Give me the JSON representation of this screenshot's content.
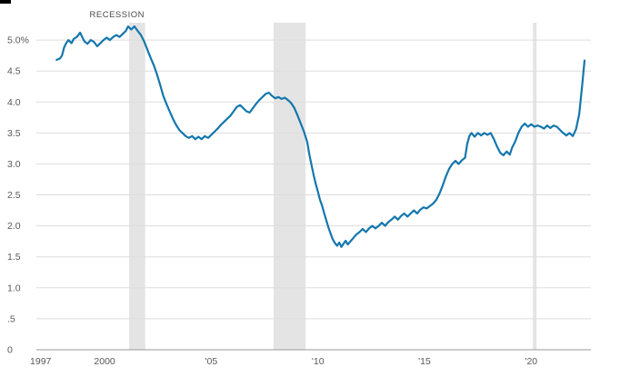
{
  "chart_data": {
    "type": "line",
    "title": "",
    "xlabel": "",
    "ylabel": "",
    "grid": true,
    "xlim": [
      1996.8,
      2022.8
    ],
    "ylim": [
      0,
      5.28
    ],
    "recession_label": "RECESSION",
    "colors": {
      "line": "#1477ad",
      "grid": "#dddddd",
      "axis": "#9a9a9a",
      "band": "#e4e4e4",
      "tick_text": "#595959",
      "annotation_text": "#4a4a4a",
      "corner_mark": "#000000"
    },
    "yticks": [
      {
        "value": 5.0,
        "label": "5.0%"
      },
      {
        "value": 4.5,
        "label": "4.5"
      },
      {
        "value": 4.0,
        "label": "4.0"
      },
      {
        "value": 3.5,
        "label": "3.5"
      },
      {
        "value": 3.0,
        "label": "3.0"
      },
      {
        "value": 2.5,
        "label": "2.5"
      },
      {
        "value": 2.0,
        "label": "2.0"
      },
      {
        "value": 1.5,
        "label": "1.5"
      },
      {
        "value": 1.0,
        "label": "1.0"
      },
      {
        "value": 0.5,
        "label": ".5"
      },
      {
        "value": 0,
        "label": "0"
      }
    ],
    "xticks": [
      {
        "value": 1997,
        "label": "1997"
      },
      {
        "value": 2000,
        "label": "2000"
      },
      {
        "value": 2005,
        "label": "'05"
      },
      {
        "value": 2010,
        "label": "'10"
      },
      {
        "value": 2015,
        "label": "'15"
      },
      {
        "value": 2020,
        "label": "'20"
      }
    ],
    "recessions": [
      {
        "start": 2001.15,
        "end": 2001.9
      },
      {
        "start": 2007.92,
        "end": 2009.42
      },
      {
        "start": 2020.08,
        "end": 2020.25
      }
    ],
    "series": [
      {
        "name": "series-1",
        "points": [
          [
            1997.75,
            4.68
          ],
          [
            1997.9,
            4.7
          ],
          [
            1998.0,
            4.75
          ],
          [
            1998.1,
            4.88
          ],
          [
            1998.2,
            4.95
          ],
          [
            1998.3,
            5.0
          ],
          [
            1998.45,
            4.95
          ],
          [
            1998.55,
            5.02
          ],
          [
            1998.7,
            5.05
          ],
          [
            1998.85,
            5.12
          ],
          [
            1998.95,
            5.05
          ],
          [
            1999.05,
            4.98
          ],
          [
            1999.2,
            4.94
          ],
          [
            1999.35,
            5.0
          ],
          [
            1999.5,
            4.97
          ],
          [
            1999.65,
            4.9
          ],
          [
            1999.8,
            4.95
          ],
          [
            1999.95,
            5.0
          ],
          [
            2000.1,
            5.04
          ],
          [
            2000.25,
            5.0
          ],
          [
            2000.4,
            5.05
          ],
          [
            2000.55,
            5.08
          ],
          [
            2000.7,
            5.05
          ],
          [
            2000.85,
            5.1
          ],
          [
            2001.0,
            5.15
          ],
          [
            2001.1,
            5.22
          ],
          [
            2001.25,
            5.17
          ],
          [
            2001.4,
            5.22
          ],
          [
            2001.55,
            5.15
          ],
          [
            2001.7,
            5.08
          ],
          [
            2001.85,
            4.98
          ],
          [
            2002.0,
            4.85
          ],
          [
            2002.15,
            4.72
          ],
          [
            2002.3,
            4.6
          ],
          [
            2002.45,
            4.45
          ],
          [
            2002.6,
            4.28
          ],
          [
            2002.75,
            4.1
          ],
          [
            2002.9,
            3.97
          ],
          [
            2003.05,
            3.85
          ],
          [
            2003.2,
            3.73
          ],
          [
            2003.35,
            3.63
          ],
          [
            2003.5,
            3.55
          ],
          [
            2003.65,
            3.5
          ],
          [
            2003.8,
            3.45
          ],
          [
            2003.95,
            3.42
          ],
          [
            2004.1,
            3.45
          ],
          [
            2004.25,
            3.4
          ],
          [
            2004.4,
            3.44
          ],
          [
            2004.55,
            3.4
          ],
          [
            2004.7,
            3.45
          ],
          [
            2004.85,
            3.42
          ],
          [
            2005.0,
            3.47
          ],
          [
            2005.15,
            3.52
          ],
          [
            2005.3,
            3.57
          ],
          [
            2005.45,
            3.63
          ],
          [
            2005.6,
            3.68
          ],
          [
            2005.75,
            3.73
          ],
          [
            2005.9,
            3.78
          ],
          [
            2006.05,
            3.85
          ],
          [
            2006.2,
            3.92
          ],
          [
            2006.35,
            3.95
          ],
          [
            2006.5,
            3.9
          ],
          [
            2006.65,
            3.85
          ],
          [
            2006.8,
            3.83
          ],
          [
            2006.95,
            3.9
          ],
          [
            2007.1,
            3.97
          ],
          [
            2007.25,
            4.03
          ],
          [
            2007.4,
            4.08
          ],
          [
            2007.55,
            4.13
          ],
          [
            2007.7,
            4.15
          ],
          [
            2007.85,
            4.1
          ],
          [
            2008.0,
            4.06
          ],
          [
            2008.15,
            4.08
          ],
          [
            2008.3,
            4.05
          ],
          [
            2008.45,
            4.07
          ],
          [
            2008.6,
            4.03
          ],
          [
            2008.75,
            3.98
          ],
          [
            2008.9,
            3.9
          ],
          [
            2009.05,
            3.78
          ],
          [
            2009.2,
            3.65
          ],
          [
            2009.35,
            3.52
          ],
          [
            2009.5,
            3.35
          ],
          [
            2009.6,
            3.15
          ],
          [
            2009.7,
            2.98
          ],
          [
            2009.8,
            2.82
          ],
          [
            2009.9,
            2.68
          ],
          [
            2010.0,
            2.55
          ],
          [
            2010.1,
            2.42
          ],
          [
            2010.2,
            2.32
          ],
          [
            2010.3,
            2.2
          ],
          [
            2010.4,
            2.08
          ],
          [
            2010.5,
            1.97
          ],
          [
            2010.6,
            1.87
          ],
          [
            2010.7,
            1.78
          ],
          [
            2010.8,
            1.72
          ],
          [
            2010.9,
            1.68
          ],
          [
            2011.0,
            1.73
          ],
          [
            2011.1,
            1.66
          ],
          [
            2011.2,
            1.71
          ],
          [
            2011.3,
            1.76
          ],
          [
            2011.4,
            1.7
          ],
          [
            2011.5,
            1.74
          ],
          [
            2011.65,
            1.8
          ],
          [
            2011.8,
            1.86
          ],
          [
            2011.95,
            1.9
          ],
          [
            2012.1,
            1.95
          ],
          [
            2012.25,
            1.9
          ],
          [
            2012.4,
            1.96
          ],
          [
            2012.55,
            2.0
          ],
          [
            2012.7,
            1.96
          ],
          [
            2012.85,
            2.0
          ],
          [
            2013.0,
            2.05
          ],
          [
            2013.15,
            2.0
          ],
          [
            2013.3,
            2.06
          ],
          [
            2013.45,
            2.1
          ],
          [
            2013.6,
            2.15
          ],
          [
            2013.75,
            2.1
          ],
          [
            2013.9,
            2.16
          ],
          [
            2014.05,
            2.2
          ],
          [
            2014.2,
            2.15
          ],
          [
            2014.35,
            2.2
          ],
          [
            2014.5,
            2.25
          ],
          [
            2014.65,
            2.2
          ],
          [
            2014.8,
            2.26
          ],
          [
            2014.95,
            2.3
          ],
          [
            2015.1,
            2.28
          ],
          [
            2015.25,
            2.32
          ],
          [
            2015.4,
            2.36
          ],
          [
            2015.55,
            2.42
          ],
          [
            2015.7,
            2.52
          ],
          [
            2015.85,
            2.65
          ],
          [
            2016.0,
            2.8
          ],
          [
            2016.15,
            2.92
          ],
          [
            2016.3,
            3.0
          ],
          [
            2016.45,
            3.05
          ],
          [
            2016.6,
            3.0
          ],
          [
            2016.75,
            3.06
          ],
          [
            2016.9,
            3.1
          ],
          [
            2017.0,
            3.32
          ],
          [
            2017.1,
            3.45
          ],
          [
            2017.2,
            3.5
          ],
          [
            2017.35,
            3.44
          ],
          [
            2017.5,
            3.5
          ],
          [
            2017.65,
            3.46
          ],
          [
            2017.8,
            3.5
          ],
          [
            2017.95,
            3.47
          ],
          [
            2018.1,
            3.5
          ],
          [
            2018.25,
            3.4
          ],
          [
            2018.4,
            3.28
          ],
          [
            2018.55,
            3.18
          ],
          [
            2018.7,
            3.14
          ],
          [
            2018.85,
            3.2
          ],
          [
            2019.0,
            3.15
          ],
          [
            2019.1,
            3.26
          ],
          [
            2019.25,
            3.36
          ],
          [
            2019.4,
            3.5
          ],
          [
            2019.55,
            3.6
          ],
          [
            2019.7,
            3.65
          ],
          [
            2019.85,
            3.6
          ],
          [
            2020.0,
            3.64
          ],
          [
            2020.15,
            3.6
          ],
          [
            2020.3,
            3.62
          ],
          [
            2020.45,
            3.6
          ],
          [
            2020.6,
            3.57
          ],
          [
            2020.75,
            3.62
          ],
          [
            2020.9,
            3.58
          ],
          [
            2021.05,
            3.62
          ],
          [
            2021.2,
            3.6
          ],
          [
            2021.35,
            3.55
          ],
          [
            2021.5,
            3.5
          ],
          [
            2021.65,
            3.46
          ],
          [
            2021.8,
            3.5
          ],
          [
            2021.95,
            3.45
          ],
          [
            2022.1,
            3.56
          ],
          [
            2022.25,
            3.8
          ],
          [
            2022.4,
            4.3
          ],
          [
            2022.5,
            4.67
          ]
        ]
      }
    ]
  }
}
